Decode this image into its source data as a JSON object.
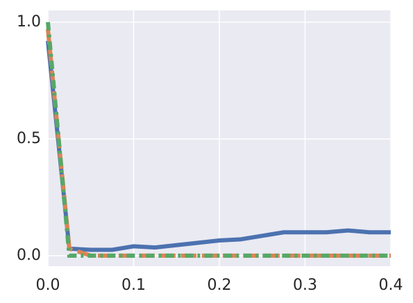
{
  "chart_data": {
    "type": "line",
    "x": [
      0,
      0.025,
      0.05,
      0.075,
      0.1,
      0.125,
      0.15,
      0.175,
      0.2,
      0.225,
      0.25,
      0.275,
      0.3,
      0.325,
      0.35,
      0.375,
      0.4
    ],
    "series": [
      {
        "color": "#4c72b0",
        "linestyle": "solid",
        "values": [
          0.92,
          0.03,
          0.025,
          0.025,
          0.04,
          0.035,
          0.045,
          0.055,
          0.065,
          0.07,
          0.085,
          0.1,
          0.1,
          0.1,
          0.108,
          0.1,
          0.1
        ]
      },
      {
        "color": "#dd8452",
        "linestyle": "dashed",
        "values": [
          0.97,
          0.03,
          0,
          0,
          0,
          0,
          0,
          0,
          0,
          0,
          0,
          0,
          0,
          0,
          0,
          0,
          0
        ]
      },
      {
        "color": "#55a868",
        "linestyle": "dashdot",
        "values": [
          1.0,
          0,
          0,
          0,
          0,
          0,
          0,
          0,
          0,
          0,
          0,
          0,
          0,
          0,
          0,
          0,
          0
        ]
      }
    ],
    "xlim": [
      0,
      0.4
    ],
    "xticks": [
      {
        "value": 0,
        "label": "0.0"
      },
      0.1,
      0.2,
      0.3,
      0.4
    ],
    "ylim": [
      -0.045,
      1.05
    ],
    "yticks": [
      {
        "value": 0,
        "label": "0.0"
      },
      0.5,
      {
        "value": 1,
        "label": "1.0"
      }
    ],
    "grid": true,
    "background": "#eaeaf2"
  }
}
